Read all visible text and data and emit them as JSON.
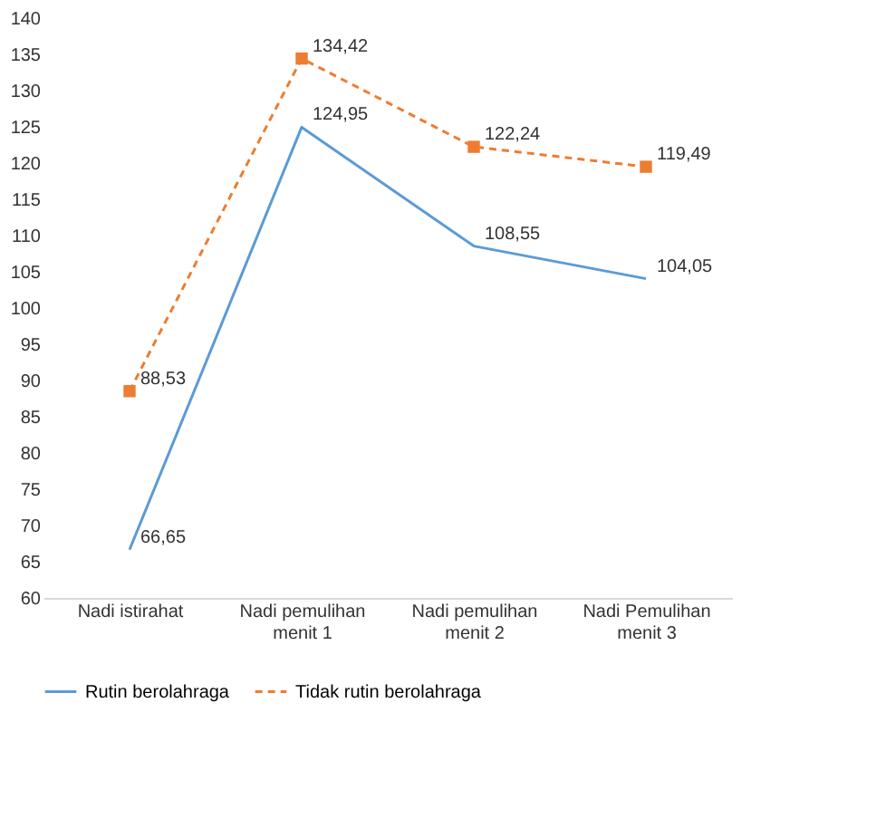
{
  "chart_data": {
    "type": "line",
    "categories": [
      "Nadi istirahat",
      "Nadi pemulihan menit 1",
      "Nadi pemulihan menit 2",
      "Nadi Pemulihan menit 3"
    ],
    "series": [
      {
        "name": "Rutin berolahraga",
        "color": "#5b9bd5",
        "values": [
          66.65,
          124.95,
          108.55,
          104.05
        ],
        "value_labels": [
          "66,65",
          "124,95",
          "108,55",
          "104,05"
        ],
        "marker": "none",
        "line_style": "solid"
      },
      {
        "name": "Tidak rutin berolahraga",
        "color": "#ed7d31",
        "values": [
          88.53,
          134.42,
          122.24,
          119.49
        ],
        "value_labels": [
          "88,53",
          "134,42",
          "122,24",
          "119,49"
        ],
        "marker": "square",
        "line_style": "dashed"
      }
    ],
    "ylim": [
      60,
      140
    ],
    "yticks": [
      60,
      65,
      70,
      75,
      80,
      85,
      90,
      95,
      100,
      105,
      110,
      115,
      120,
      125,
      130,
      135,
      140
    ],
    "grid": false,
    "legend": "bottom"
  }
}
